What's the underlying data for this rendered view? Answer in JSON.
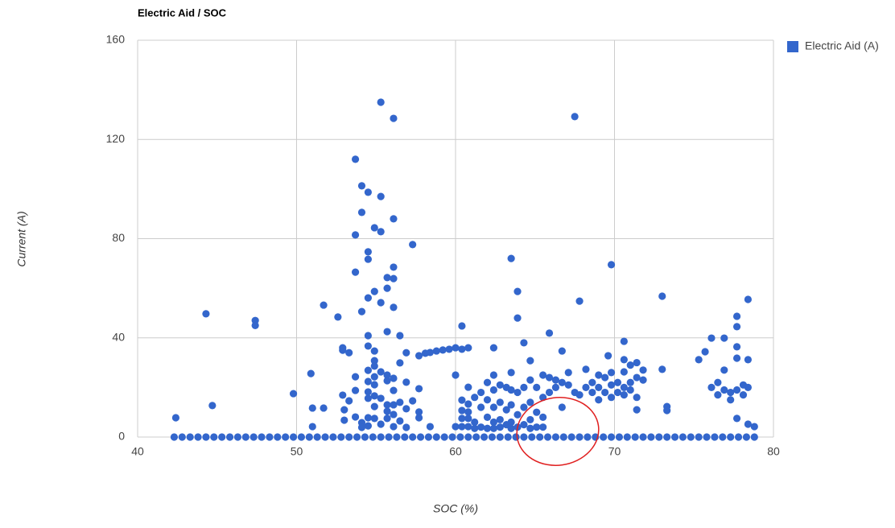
{
  "chart_data": {
    "type": "scatter",
    "title": "Electric Aid / SOC",
    "x_label": "SOC (%)",
    "y_label": "Current (A)",
    "xlim": [
      40,
      80
    ],
    "xticks": [
      40,
      50,
      60,
      70,
      80
    ],
    "ylim": [
      0,
      160
    ],
    "yticks": [
      0,
      40,
      80,
      120,
      160
    ],
    "grid": true,
    "legend": "right",
    "x": [
      42.4,
      44.3,
      44.7,
      47.4,
      47.4,
      49.8,
      50.9,
      51,
      51,
      51.7,
      51.7,
      52.6,
      52.9,
      52.9,
      53.3,
      52.9,
      53,
      53,
      53.3,
      53.7,
      53.7,
      53.7,
      53.7,
      53.7,
      53.7,
      54.1,
      54.1,
      54.1,
      54.1,
      54.1,
      54.5,
      54.5,
      54.5,
      54.5,
      54.5,
      54.5,
      54.5,
      54.5,
      54.5,
      54.5,
      54.5,
      54.5,
      54.9,
      54.9,
      54.9,
      54.9,
      54.9,
      54.9,
      54.9,
      54.9,
      54.9,
      54.9,
      55.3,
      55.3,
      55.3,
      55.3,
      55.3,
      55.3,
      55.3,
      55.7,
      55.7,
      55.7,
      55.7,
      55.7,
      55.7,
      55.7,
      55.7,
      56.1,
      56.1,
      56.1,
      56.1,
      56.1,
      56.1,
      56.1,
      56.1,
      56.1,
      56.1,
      56.5,
      56.5,
      56.5,
      56.5,
      56.9,
      56.9,
      56.9,
      56.9,
      57.3,
      57.3,
      57.7,
      57.7,
      57.7,
      57.7,
      58.1,
      58.4,
      58.8,
      59.2,
      59.6,
      60,
      60.4,
      60.8,
      58.4,
      60,
      60,
      60.4,
      60.4,
      60.4,
      60.4,
      60.4,
      60.8,
      60.8,
      60.8,
      60.8,
      60.8,
      61.2,
      61.2,
      61.2,
      61.6,
      61.6,
      61.6,
      62,
      62,
      62,
      62,
      62.4,
      62.4,
      62.4,
      62.4,
      62.4,
      62.4,
      62.8,
      62.8,
      62.8,
      62.8,
      63.2,
      63.2,
      63.2,
      63.5,
      63.5,
      63.5,
      63.5,
      63.5,
      63.5,
      63.9,
      63.9,
      63.9,
      63.9,
      63.9,
      64.3,
      64.3,
      64.3,
      64.3,
      64.7,
      64.7,
      64.7,
      64.7,
      64.7,
      65.1,
      65.1,
      65.1,
      65.5,
      65.5,
      65.5,
      65.5,
      65.9,
      65.9,
      65.9,
      66.3,
      66.3,
      66.7,
      66.7,
      66.7,
      67.1,
      67.1,
      67.5,
      67.5,
      67.8,
      67.8,
      68.2,
      68.2,
      68.6,
      68.6,
      69,
      69,
      69,
      69.4,
      69.4,
      69.6,
      69.8,
      69.8,
      69.8,
      69.8,
      70.2,
      70.2,
      70.6,
      70.6,
      70.6,
      70.6,
      70.6,
      71,
      71,
      71,
      71.4,
      71.4,
      71.4,
      71.4,
      71.8,
      71.8,
      73,
      73,
      73.3,
      73.3,
      75.3,
      75.7,
      76.1,
      76.1,
      76.5,
      76.5,
      76.9,
      76.9,
      76.9,
      77.3,
      77.3,
      77.7,
      77.7,
      77.7,
      77.7,
      77.7,
      77.7,
      78.1,
      78.1,
      78.4,
      78.4,
      78.4,
      78.4,
      78.8,
      42.3,
      42.8,
      43.3,
      43.8,
      44.3,
      44.8,
      45.3,
      45.8,
      46.3,
      46.8,
      47.3,
      47.8,
      48.3,
      48.8,
      49.3,
      49.8,
      50.3,
      50.8,
      51.3,
      51.8,
      52.3,
      52.8,
      53.3,
      53.8,
      54.3,
      54.8,
      55.3,
      55.8,
      56.3,
      56.8,
      57.3,
      57.8,
      58.3,
      58.8,
      59.3,
      59.8,
      60.3,
      60.8,
      61.3,
      61.8,
      62.3,
      62.8,
      63.3,
      63.8,
      64.3,
      64.8,
      65.3,
      65.8,
      66.3,
      66.8,
      67.3,
      67.8,
      68.3,
      68.8,
      69.3,
      69.8,
      70.3,
      70.8,
      71.3,
      71.8,
      72.3,
      72.8,
      73.3,
      73.8,
      74.3,
      74.8,
      75.3,
      75.8,
      76.3,
      76.8,
      77.3,
      77.8,
      78.3,
      78.8
    ],
    "series": [
      {
        "name": "Electric Aid (A)",
        "color": "#3366cc",
        "values": [
          7.8,
          49.7,
          12.7,
          47,
          45,
          17.5,
          25.6,
          11.7,
          4.2,
          11.7,
          53.2,
          48.4,
          36,
          35,
          34,
          16.9,
          11,
          6.8,
          14.6,
          112,
          81.5,
          66.5,
          24.3,
          18.8,
          8.1,
          101.3,
          90.6,
          50.6,
          5.8,
          3.9,
          98.7,
          74.7,
          71.7,
          56.1,
          40.9,
          36.7,
          26.9,
          22.4,
          18.2,
          15.6,
          7.8,
          4.5,
          84.4,
          58.7,
          34.7,
          30.8,
          28.6,
          24.3,
          21.1,
          16.6,
          12.3,
          7.5,
          135,
          97,
          82.8,
          54.2,
          26.3,
          15.6,
          5.2,
          64.3,
          60,
          42.5,
          25,
          22.7,
          13,
          10.4,
          7.5,
          128.5,
          88,
          68.5,
          63.9,
          52.3,
          23.7,
          18.8,
          13,
          9.1,
          4.2,
          40.9,
          29.9,
          14,
          6.5,
          34,
          22.1,
          11.4,
          3.9,
          77.6,
          14.6,
          19.5,
          10.1,
          7.8,
          32.8,
          33.8,
          34.1,
          34.7,
          35.1,
          35.4,
          36,
          35.4,
          36,
          4.2,
          25,
          4.2,
          44.8,
          14.9,
          10.7,
          7.5,
          4.2,
          20.1,
          13.3,
          10.1,
          7.5,
          4.2,
          16,
          6,
          3.5,
          18,
          12,
          4,
          22,
          15,
          8,
          3.5,
          36,
          25,
          19,
          12,
          6,
          3.5,
          21,
          14,
          7,
          4,
          20,
          11,
          5,
          72,
          26,
          19,
          13,
          6,
          3.5,
          58.7,
          48,
          18,
          9,
          4,
          38,
          20,
          12,
          5,
          30.8,
          23,
          14,
          7,
          3.5,
          20,
          10,
          4,
          25,
          16,
          8,
          4,
          41.9,
          24,
          18,
          20,
          23,
          34.7,
          22,
          12,
          26,
          21,
          129.2,
          18,
          54.8,
          17,
          27.3,
          20,
          18,
          22,
          20,
          25,
          15,
          24,
          18,
          32.8,
          69.5,
          26,
          21,
          16,
          22,
          18,
          38.6,
          31.2,
          26.3,
          20,
          17,
          29,
          22,
          19,
          30,
          24,
          16,
          11,
          27,
          23,
          56.8,
          27.3,
          12.3,
          10.7,
          31.2,
          34.4,
          39.9,
          20,
          22,
          17,
          39.9,
          27,
          19,
          18,
          15,
          48.7,
          44.5,
          36.4,
          31.8,
          19,
          7.5,
          21,
          17,
          55.5,
          31.2,
          20,
          5.2,
          4.2,
          0,
          0,
          0,
          0,
          0,
          0,
          0,
          0,
          0,
          0,
          0,
          0,
          0,
          0,
          0,
          0,
          0,
          0,
          0,
          0,
          0,
          0,
          0,
          0,
          0,
          0,
          0,
          0,
          0,
          0,
          0,
          0,
          0,
          0,
          0,
          0,
          0,
          0,
          0,
          0,
          0,
          0,
          0,
          0,
          0,
          0,
          0,
          0,
          0,
          0,
          0,
          0,
          0,
          0,
          0,
          0,
          0,
          0,
          0,
          0,
          0,
          0,
          0,
          0,
          0,
          0,
          0,
          0,
          0,
          0,
          0,
          0,
          0,
          0
        ]
      }
    ]
  }
}
